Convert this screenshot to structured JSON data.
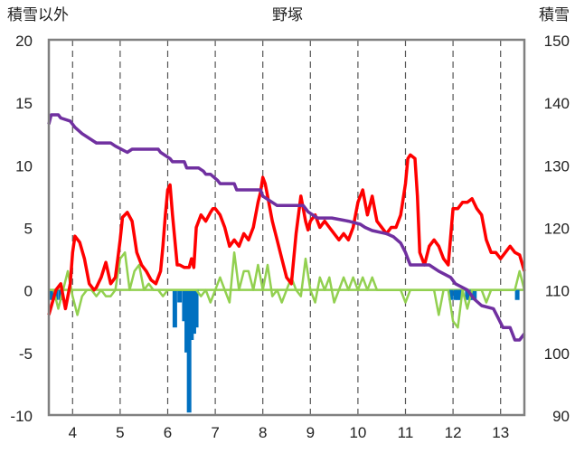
{
  "chart_data": {
    "type": "line",
    "title": "野塚",
    "left_axis_label": "積雪以外",
    "right_axis_label": "積雪",
    "ylim_left": [
      -10,
      20
    ],
    "yticks_left": [
      -10,
      -5,
      0,
      5,
      10,
      15,
      20
    ],
    "ylim_right": [
      90,
      150
    ],
    "yticks_right": [
      90,
      100,
      110,
      120,
      130,
      140,
      150
    ],
    "xlim": [
      3.5,
      13.5
    ],
    "xticks": [
      4,
      5,
      6,
      7,
      8,
      9,
      10,
      11,
      12,
      13
    ],
    "grid": "vertical dashed at each tick",
    "colors": {
      "red": "#ff0000",
      "green": "#92d050",
      "purple": "#7030a0",
      "blue": "#0070c0",
      "frame": "#808080"
    },
    "series": [
      {
        "axis": "left",
        "color": "#ff0000",
        "x": [
          3.5,
          3.65,
          3.75,
          3.85,
          3.95,
          4.0,
          4.05,
          4.15,
          4.25,
          4.35,
          4.45,
          4.5,
          4.6,
          4.7,
          4.8,
          4.9,
          4.95,
          5.0,
          5.05,
          5.15,
          5.25,
          5.35,
          5.45,
          5.55,
          5.65,
          5.75,
          5.85,
          5.9,
          5.95,
          6.0,
          6.05,
          6.1,
          6.15,
          6.2,
          6.25,
          6.35,
          6.45,
          6.5,
          6.55,
          6.6,
          6.7,
          6.8,
          6.9,
          6.95,
          7.0,
          7.1,
          7.2,
          7.3,
          7.4,
          7.5,
          7.6,
          7.7,
          7.8,
          7.85,
          7.9,
          7.95,
          8.0,
          8.05,
          8.1,
          8.2,
          8.3,
          8.4,
          8.5,
          8.6,
          8.7,
          8.8,
          8.85,
          8.9,
          8.95,
          9.0,
          9.1,
          9.2,
          9.3,
          9.4,
          9.5,
          9.6,
          9.7,
          9.8,
          9.9,
          10.0,
          10.1,
          10.2,
          10.3,
          10.4,
          10.5,
          10.6,
          10.7,
          10.8,
          10.9,
          11.0,
          11.05,
          11.1,
          11.2,
          11.25,
          11.3,
          11.4,
          11.5,
          11.6,
          11.7,
          11.8,
          11.9,
          12.0,
          12.1,
          12.2,
          12.3,
          12.4,
          12.5,
          12.6,
          12.7,
          12.8,
          12.9,
          13.0,
          13.1,
          13.2,
          13.3,
          13.4,
          13.5
        ],
        "y": [
          -2.0,
          0.0,
          0.5,
          -1.5,
          0.5,
          3.0,
          4.3,
          3.8,
          2.5,
          0.5,
          0.0,
          0.2,
          1.0,
          2.2,
          0.5,
          1.0,
          2.5,
          4.0,
          5.8,
          6.2,
          5.5,
          3.0,
          2.0,
          1.5,
          0.8,
          0.5,
          1.5,
          3.5,
          6.0,
          8.0,
          8.4,
          6.0,
          4.0,
          2.0,
          2.0,
          1.8,
          1.8,
          2.5,
          1.8,
          5.0,
          6.0,
          5.5,
          6.2,
          6.5,
          6.5,
          6.0,
          5.0,
          3.5,
          4.0,
          3.5,
          4.5,
          4.0,
          5.0,
          6.0,
          7.0,
          7.8,
          9.0,
          8.5,
          7.5,
          5.5,
          4.0,
          2.5,
          1.0,
          0.5,
          4.5,
          7.5,
          6.5,
          5.5,
          4.8,
          5.5,
          6.0,
          5.0,
          5.5,
          5.0,
          4.5,
          4.0,
          4.5,
          4.0,
          5.0,
          7.0,
          8.0,
          6.0,
          7.5,
          5.5,
          5.0,
          4.5,
          5.0,
          5.0,
          6.0,
          8.5,
          10.5,
          10.8,
          10.5,
          7.5,
          3.0,
          2.0,
          3.5,
          4.0,
          3.5,
          2.5,
          2.0,
          6.5,
          6.5,
          7.0,
          7.0,
          7.3,
          6.5,
          6.0,
          4.0,
          3.0,
          3.0,
          2.5,
          3.0,
          3.5,
          3.0,
          2.8,
          1.5
        ]
      },
      {
        "axis": "left",
        "color": "#92d050",
        "x": [
          3.5,
          3.6,
          3.7,
          3.8,
          3.9,
          4.0,
          4.1,
          4.2,
          4.3,
          4.4,
          4.5,
          4.6,
          4.7,
          4.8,
          4.9,
          5.0,
          5.1,
          5.2,
          5.3,
          5.4,
          5.5,
          5.6,
          5.7,
          5.8,
          5.9,
          6.0,
          6.1,
          6.2,
          6.3,
          6.4,
          6.5,
          6.6,
          6.7,
          6.8,
          6.9,
          7.0,
          7.1,
          7.2,
          7.3,
          7.4,
          7.5,
          7.6,
          7.7,
          7.8,
          7.9,
          8.0,
          8.1,
          8.2,
          8.3,
          8.4,
          8.5,
          8.6,
          8.7,
          8.8,
          8.9,
          9.0,
          9.1,
          9.2,
          9.3,
          9.4,
          9.5,
          9.6,
          9.7,
          9.8,
          9.9,
          10.0,
          10.1,
          10.2,
          10.3,
          10.4,
          10.5,
          10.6,
          10.7,
          10.8,
          10.9,
          11.0,
          11.1,
          11.2,
          11.3,
          11.4,
          11.5,
          11.6,
          11.7,
          11.8,
          11.9,
          12.0,
          12.1,
          12.2,
          12.3,
          12.4,
          12.5,
          12.6,
          12.7,
          12.8,
          12.9,
          13.0,
          13.1,
          13.2,
          13.3,
          13.4,
          13.5
        ],
        "y": [
          0,
          0,
          -1.5,
          0,
          1.5,
          -0.5,
          -2.0,
          -0.5,
          0,
          0,
          -0.5,
          0,
          -0.5,
          -0.5,
          0,
          2.5,
          3.0,
          0,
          1.5,
          2.0,
          0,
          0.5,
          0,
          0,
          -0.5,
          0,
          0,
          0,
          0,
          0,
          0,
          0,
          -0.5,
          0,
          -1.0,
          0,
          1.0,
          0,
          -1.0,
          3.0,
          0,
          1.5,
          1.5,
          0,
          2.0,
          0,
          2.0,
          -0.5,
          0,
          -1.0,
          0,
          1.0,
          0,
          -0.5,
          2.5,
          0,
          -1.0,
          1.0,
          0,
          1.0,
          -1.0,
          0,
          1.0,
          0,
          1.0,
          0,
          1.0,
          0,
          1.0,
          0,
          0,
          0,
          0,
          0,
          0,
          -1.0,
          0,
          0,
          0,
          0,
          0,
          0,
          -2.0,
          0,
          0,
          -2.5,
          -3.0,
          0,
          -1.5,
          0,
          0,
          0,
          -1.0,
          0,
          0,
          0,
          0,
          0,
          0,
          1.5,
          0
        ]
      },
      {
        "axis": "right",
        "color": "#7030a0",
        "x": [
          3.5,
          3.55,
          3.7,
          3.75,
          3.95,
          4.05,
          4.2,
          4.5,
          4.8,
          4.9,
          5.15,
          5.25,
          5.8,
          5.85,
          6.05,
          6.1,
          6.35,
          6.4,
          6.65,
          6.75,
          6.8,
          6.9,
          7.05,
          7.1,
          7.4,
          7.45,
          7.95,
          8.0,
          8.1,
          8.2,
          8.3,
          8.85,
          8.95,
          9.05,
          9.15,
          9.45,
          9.8,
          10.05,
          10.15,
          10.3,
          10.6,
          10.75,
          10.9,
          11.0,
          11.05,
          11.1,
          11.35,
          11.5,
          11.7,
          11.95,
          12.05,
          12.3,
          12.45,
          12.6,
          12.85,
          12.95,
          13.05,
          13.2,
          13.3,
          13.4,
          13.5
        ],
        "y": [
          136.5,
          138,
          138,
          137.5,
          137,
          136,
          135,
          133.5,
          133.5,
          133,
          132,
          132.5,
          132.5,
          132,
          131,
          130.5,
          130.5,
          129.5,
          129.5,
          129,
          128.5,
          128.5,
          127.5,
          127,
          127,
          126,
          126,
          125,
          124.5,
          124,
          123.5,
          123.5,
          122.5,
          122,
          121.5,
          121.5,
          121,
          120.5,
          120,
          119.5,
          119,
          118.5,
          117.5,
          116,
          115,
          114,
          114,
          114,
          113,
          112,
          111,
          110,
          108.5,
          107.5,
          107,
          105.5,
          104,
          104,
          102,
          102,
          103
        ]
      },
      {
        "axis": "left",
        "color": "#0070c0",
        "type": "bar",
        "x": [
          3.55,
          3.65,
          3.75,
          6.15,
          6.25,
          6.35,
          6.4,
          6.45,
          6.5,
          6.55,
          6.6,
          11.95,
          12.05,
          12.1,
          12.15,
          12.3,
          12.35,
          12.4,
          12.45,
          13.35
        ],
        "y": [
          -0.8,
          -0.8,
          -0.8,
          -3.0,
          -1.0,
          -2.5,
          -5.0,
          -9.8,
          -4.0,
          -3.5,
          -3.0,
          -0.8,
          -0.8,
          -0.8,
          -0.8,
          -0.8,
          -0.8,
          -0.8,
          -0.8,
          -0.8
        ]
      }
    ]
  }
}
